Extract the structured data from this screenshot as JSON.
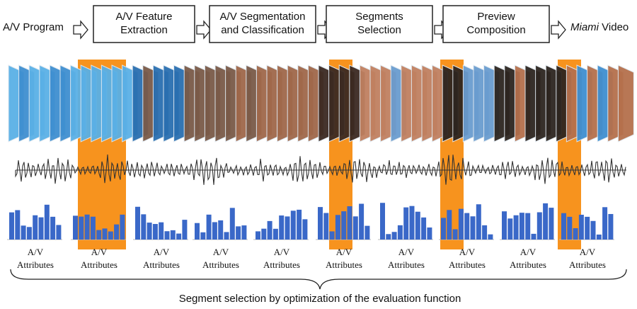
{
  "pipeline": {
    "input": "A/V Program",
    "steps": [
      [
        "A/V Feature",
        "Extraction"
      ],
      [
        "A/V Segmentation",
        "and Classification"
      ],
      [
        "Segments",
        "Selection"
      ],
      [
        "Preview",
        "Composition"
      ]
    ],
    "output": {
      "emphasis": "Miami",
      "text": "Video"
    }
  },
  "attributes": {
    "labels": [
      [
        "A/V",
        "Attributes"
      ],
      [
        "A/V",
        "Attributes"
      ],
      [
        "A/V",
        "Attributes"
      ],
      [
        "A/V",
        "Attributes"
      ],
      [
        "A/V",
        "Attributes"
      ],
      [
        "A/V",
        "Attributes"
      ],
      [
        "A/V",
        "Attributes"
      ],
      [
        "A/V",
        "Attributes"
      ],
      [
        "A/V",
        "Attributes"
      ],
      [
        "A/V",
        "Attributes"
      ]
    ]
  },
  "caption": "Segment selection by optimization of the evaluation function"
}
